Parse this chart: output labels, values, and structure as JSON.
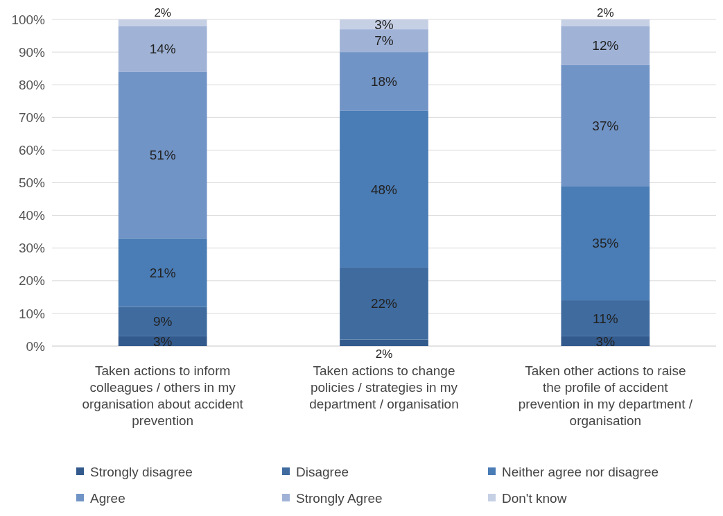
{
  "chart_data": {
    "type": "bar",
    "stacked": true,
    "categories": [
      "Taken actions to inform colleagues / others in my organisation about accident prevention",
      "Taken actions to change policies / strategies in my department / organisation",
      "Taken other actions to raise the profile of accident prevention in my department / organisation"
    ],
    "series": [
      {
        "name": "Strongly disagree",
        "color": "#335a8c",
        "values": [
          3,
          2,
          3
        ],
        "value_labels": [
          "3%",
          "2%",
          "3%"
        ]
      },
      {
        "name": "Disagree",
        "color": "#3f6b9f",
        "values": [
          9,
          22,
          11
        ],
        "value_labels": [
          "9%",
          "22%",
          "11%"
        ]
      },
      {
        "name": "Neither agree nor disagree",
        "color": "#4a7cb5",
        "values": [
          21,
          48,
          35
        ],
        "value_labels": [
          "21%",
          "48%",
          "35%"
        ]
      },
      {
        "name": "Agree",
        "color": "#7194c6",
        "values": [
          51,
          18,
          37
        ],
        "value_labels": [
          "51%",
          "18%",
          "37%"
        ]
      },
      {
        "name": "Strongly Agree",
        "color": "#a0b3d7",
        "values": [
          14,
          7,
          12
        ],
        "value_labels": [
          "14%",
          "7%",
          "12%"
        ]
      },
      {
        "name": "Don't know",
        "color": "#c6d0e5",
        "values": [
          2,
          3,
          2
        ],
        "value_labels": [
          "2%",
          "3%",
          "2%"
        ]
      }
    ],
    "ylim": [
      0,
      100
    ],
    "yticks": [
      {
        "value": 0,
        "label": "0%"
      },
      {
        "value": 10,
        "label": "10%"
      },
      {
        "value": 20,
        "label": "20%"
      },
      {
        "value": 30,
        "label": "30%"
      },
      {
        "value": 40,
        "label": "40%"
      },
      {
        "value": 50,
        "label": "50%"
      },
      {
        "value": 60,
        "label": "60%"
      },
      {
        "value": 70,
        "label": "70%"
      },
      {
        "value": 80,
        "label": "80%"
      },
      {
        "value": 90,
        "label": "90%"
      },
      {
        "value": 100,
        "label": "100%"
      }
    ],
    "grid": "y",
    "legend": "bottom"
  }
}
